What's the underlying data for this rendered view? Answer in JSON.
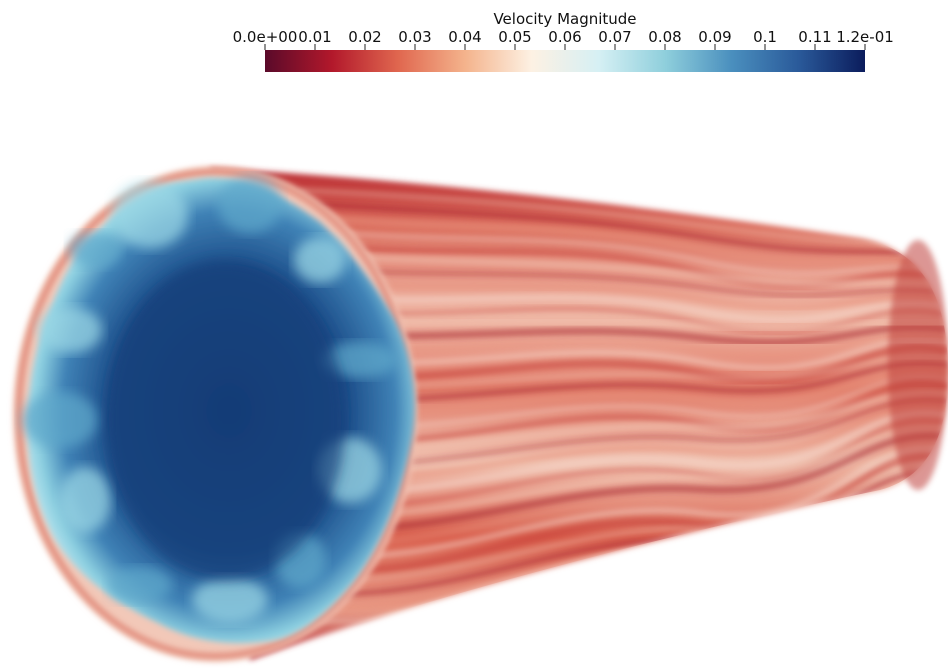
{
  "colorbar": {
    "title": "Velocity Magnitude",
    "range": [
      0,
      0.12
    ],
    "ticks": [
      {
        "value": 0.0,
        "label": "0.0e+00"
      },
      {
        "value": 0.01,
        "label": "0.01"
      },
      {
        "value": 0.02,
        "label": "0.02"
      },
      {
        "value": 0.03,
        "label": "0.03"
      },
      {
        "value": 0.04,
        "label": "0.04"
      },
      {
        "value": 0.05,
        "label": "0.05"
      },
      {
        "value": 0.06,
        "label": "0.06"
      },
      {
        "value": 0.07,
        "label": "0.07"
      },
      {
        "value": 0.08,
        "label": "0.08"
      },
      {
        "value": 0.09,
        "label": "0.09"
      },
      {
        "value": 0.1,
        "label": "0.1"
      },
      {
        "value": 0.11,
        "label": "0.11"
      },
      {
        "value": 0.12,
        "label": "1.2e-01"
      }
    ],
    "colormap_stops": [
      "#5a0a2a",
      "#b2182b",
      "#e0674f",
      "#f4b38c",
      "#fdf1e3",
      "#d6f0f4",
      "#8fcfdc",
      "#4a8fbe",
      "#2a5a9a",
      "#0b1c5c"
    ]
  },
  "render": {
    "inlet_core_color": "#163f7a",
    "inlet_ring_color": "#7cc4d8",
    "wall_color": "#d25a4a",
    "wall_streak_color": "#f2c6b4",
    "wall_dark_color": "#a5202a"
  }
}
